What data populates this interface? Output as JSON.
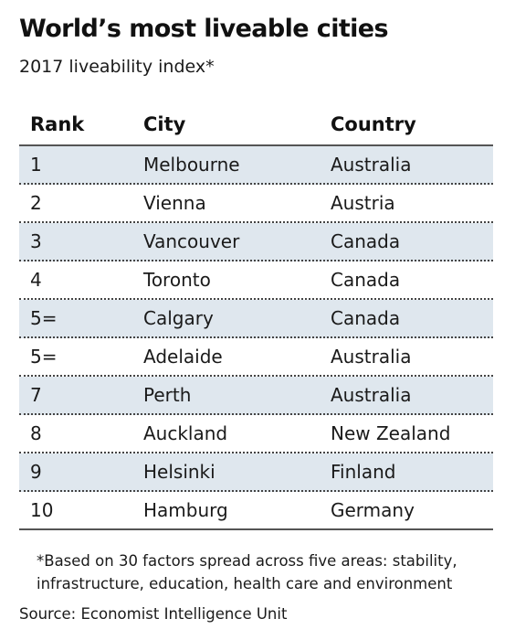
{
  "title": "World’s most liveable cities",
  "subtitle": "2017 liveability index*",
  "footnote_line1": "*Based on 30 factors spread across five areas: stability,",
  "footnote_line2": "infrastructure, education, health care and environment",
  "source": "Source: Economist Intelligence Unit",
  "colors": {
    "shaded_row": "#dfe7ee",
    "text": "#1a1a1a"
  },
  "chart_data": {
    "type": "table",
    "title": "World’s most liveable cities",
    "subtitle": "2017 liveability index*",
    "columns": [
      "Rank",
      "City",
      "Country"
    ],
    "rows": [
      [
        "1",
        "Melbourne",
        "Australia"
      ],
      [
        "2",
        "Vienna",
        "Austria"
      ],
      [
        "3",
        "Vancouver",
        "Canada"
      ],
      [
        "4",
        "Toronto",
        "Canada"
      ],
      [
        "5=",
        "Calgary",
        "Canada"
      ],
      [
        "5=",
        "Adelaide",
        "Australia"
      ],
      [
        "7",
        "Perth",
        "Australia"
      ],
      [
        "8",
        "Auckland",
        "New Zealand"
      ],
      [
        "9",
        "Helsinki",
        "Finland"
      ],
      [
        "10",
        "Hamburg",
        "Germany"
      ]
    ]
  }
}
